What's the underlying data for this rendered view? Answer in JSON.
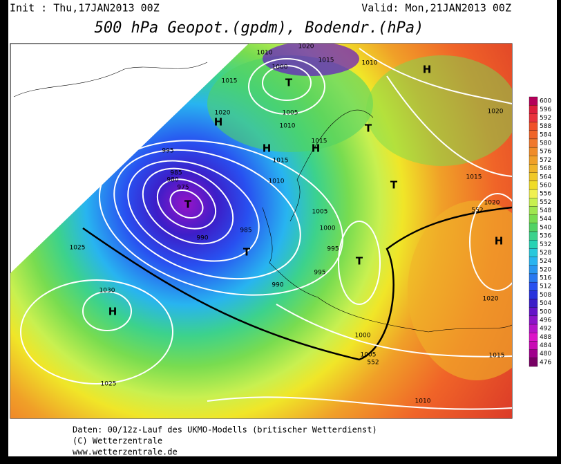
{
  "header": {
    "init": "Init : Thu,17JAN2013 00Z",
    "valid": "Valid: Mon,21JAN2013 00Z",
    "title": "500 hPa Geopot.(gpdm), Bodendr.(hPa)"
  },
  "footer": {
    "lines": [
      "Daten: 00/12z-Lauf des UKMO-Modells (britischer Wetterdienst)",
      "(C) Wetterzentrale",
      "www.wetterzentrale.de"
    ]
  },
  "colorbar": {
    "values": [
      600,
      596,
      592,
      588,
      584,
      580,
      576,
      572,
      568,
      564,
      560,
      556,
      552,
      548,
      544,
      540,
      536,
      532,
      528,
      524,
      520,
      516,
      512,
      508,
      504,
      500,
      496,
      492,
      488,
      484,
      480,
      476
    ],
    "colors": [
      "#b4005a",
      "#dc1e3c",
      "#e8323c",
      "#f05028",
      "#f06428",
      "#f0782d",
      "#f08c28",
      "#f0a028",
      "#f0b428",
      "#f0c828",
      "#f0dc28",
      "#f0f050",
      "#c8f050",
      "#a0e650",
      "#78dc50",
      "#50d264",
      "#3cd28c",
      "#28d2b4",
      "#28c8dc",
      "#28b4f0",
      "#2896f0",
      "#2878f0",
      "#2850f0",
      "#2832dc",
      "#3c1ec8",
      "#6414c8",
      "#8c14c8",
      "#b414c8",
      "#dc14c8",
      "#c80ab4",
      "#a0008c",
      "#780064"
    ]
  },
  "isobar_labels": [
    1020,
    1010,
    1015,
    1010,
    1000,
    1015,
    1005,
    1020,
    1010,
    1015,
    995,
    1015,
    985,
    980,
    975,
    1010,
    1020,
    1015,
    1020,
    1005,
    1000,
    990,
    985,
    995,
    995,
    990,
    1025,
    1030,
    1020,
    1000,
    1005,
    552,
    552,
    1015,
    1025,
    1010
  ],
  "centers": [
    "T",
    "H",
    "H",
    "H",
    "T",
    "T",
    "T",
    "T",
    "T",
    "H",
    "H",
    "H"
  ]
}
